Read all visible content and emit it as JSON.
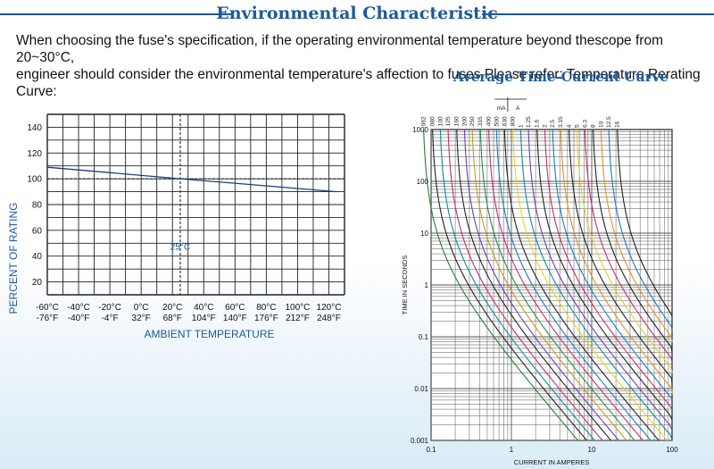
{
  "header": {
    "title": "Environmental Characteristic"
  },
  "intro": {
    "line1": "When choosing the fuse's specification, if the operating environmental temperature beyond thescope from 20~30°C,",
    "line2": "engineer should consider the environmental temperature's affection to fuses.Please refer: Temperature Rerating Curve:"
  },
  "curve_title": "Average Time-Current Curve",
  "colors": {
    "accent": "#1d5a9a",
    "grid": "#222222",
    "derating_line": "#1d3f7a"
  },
  "chart_data": [
    {
      "type": "line",
      "title": "",
      "xlabel": "AMBIENT  TEMPERATURE",
      "ylabel": "PERCENT OF RATING",
      "x_ticks_c": [
        "-60°C",
        "-40°C",
        "-20°C",
        "0°C",
        "20°C",
        "40°C",
        "60°C",
        "80°C",
        "100°C",
        "120°C"
      ],
      "x_ticks_f": [
        "-76°F",
        "-40°F",
        "-4°F",
        "32°F",
        "68°F",
        "104°F",
        "140°F",
        "176°F",
        "212°F",
        "248°F"
      ],
      "y_ticks": [
        "140",
        "120",
        "100",
        "80",
        "60",
        "40",
        "20"
      ],
      "xlim": [
        -60,
        130
      ],
      "ylim": [
        10,
        150
      ],
      "reference": {
        "x": 25,
        "y": 100,
        "label": "25°C"
      },
      "series": [
        {
          "x": [
            -60,
            25,
            125
          ],
          "values": [
            109,
            100,
            90
          ]
        }
      ],
      "grid": true
    },
    {
      "type": "line",
      "title": "",
      "xlabel": "CURRENT  IN  AMPERES",
      "ylabel": "TIME IN SECONDS",
      "xscale": "log",
      "yscale": "log",
      "xlim": [
        0.1,
        100
      ],
      "ylim": [
        0.001,
        1000
      ],
      "x_ticks": [
        "0.1",
        "1",
        "10",
        "100"
      ],
      "y_ticks": [
        "1000",
        "100",
        "10",
        "1",
        "0.1",
        "0.01",
        "0.001"
      ],
      "unit_marks": [
        "mA",
        "A"
      ],
      "ratings": [
        ".062",
        ".080",
        ".100",
        ".125",
        ".160",
        ".200",
        ".250",
        ".315",
        ".400",
        ".500",
        ".630",
        ".800",
        "1",
        "1.25",
        "1.6",
        "2",
        "2.5",
        "3.15",
        "4",
        "5",
        "6.3",
        "8",
        "10",
        "12.5",
        "16"
      ],
      "rated_currents": [
        0.062,
        0.08,
        0.1,
        0.125,
        0.16,
        0.2,
        0.25,
        0.315,
        0.4,
        0.5,
        0.63,
        0.8,
        1,
        1.25,
        1.6,
        2,
        2.5,
        3.15,
        4,
        5,
        6.3,
        8,
        10,
        12.5,
        16
      ],
      "curve_colors": [
        "#2a7a3a",
        "#222222",
        "#0e8a9a",
        "#c0306e",
        "#222222",
        "#6a3fb0",
        "#c69b1a",
        "#2a8a4a",
        "#c0306e",
        "#1a7ac6",
        "#222222",
        "#e7d51f",
        "#0e8a9a",
        "#6a3fb0",
        "#222222",
        "#c0306e",
        "#1a7ac6",
        "#e0902a",
        "#222222",
        "#e8cf2a",
        "#c0306e",
        "#222222",
        "#e0902a",
        "#1a7ac6",
        "#222222"
      ],
      "grid": true
    }
  ]
}
